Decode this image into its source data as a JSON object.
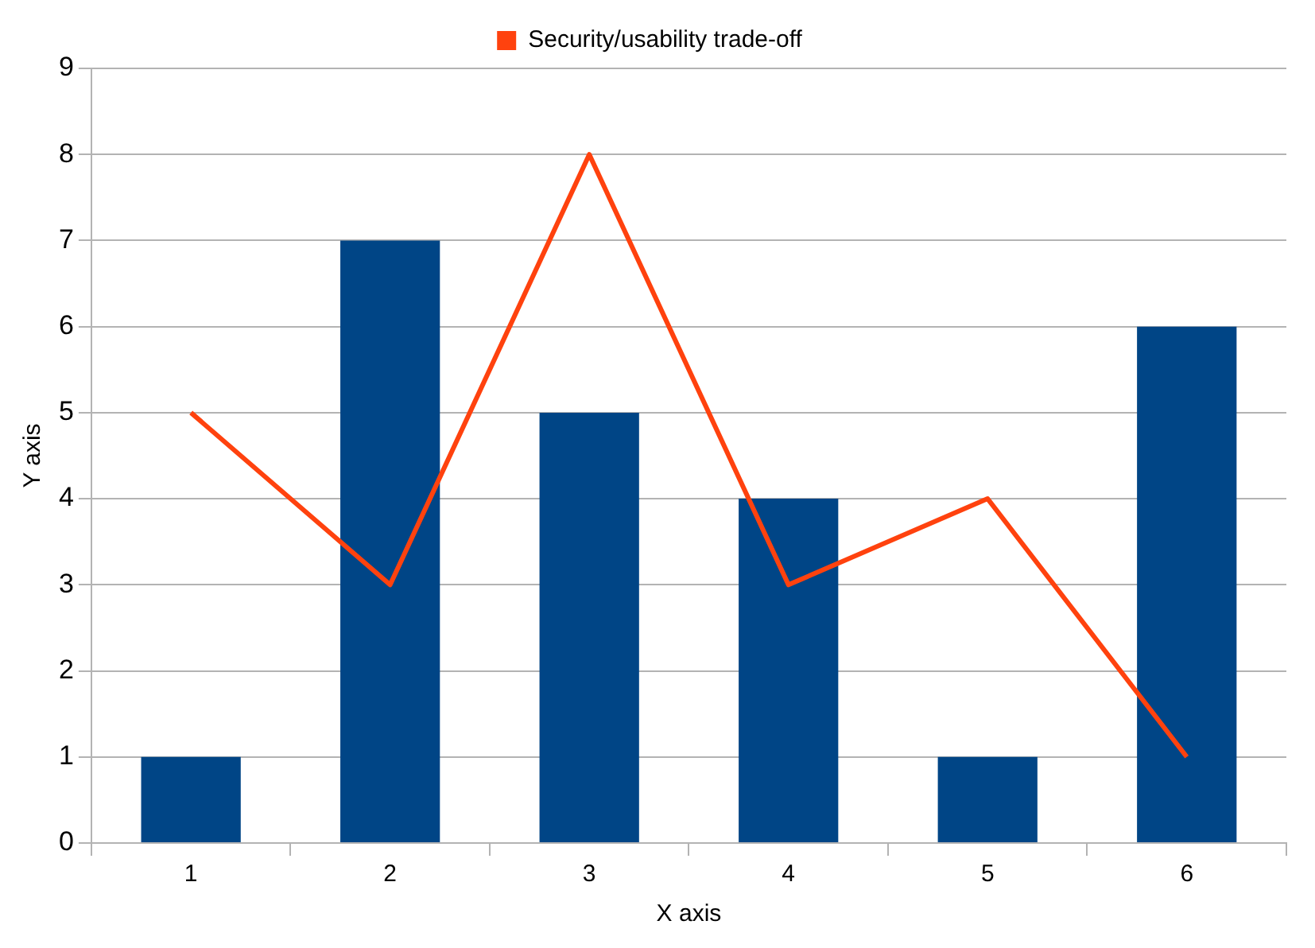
{
  "chart_data": {
    "type": "bar",
    "xlabel": "X axis",
    "ylabel": "Y axis",
    "categories": [
      "1",
      "2",
      "3",
      "4",
      "5",
      "6"
    ],
    "series": [
      {
        "color": "#004586",
        "values": [
          1,
          7,
          5,
          4,
          1,
          6
        ]
      },
      {
        "type": "line",
        "name": "Security/usability trade-off",
        "color": "#ff420e",
        "values": [
          5,
          3,
          8,
          3,
          4,
          1
        ]
      }
    ],
    "ylim": [
      0,
      9
    ],
    "yticks": [
      0,
      1,
      2,
      3,
      4,
      5,
      6,
      7,
      8,
      9
    ],
    "grid": "y",
    "legend": "top",
    "marker": "none",
    "line_style": "solid"
  }
}
